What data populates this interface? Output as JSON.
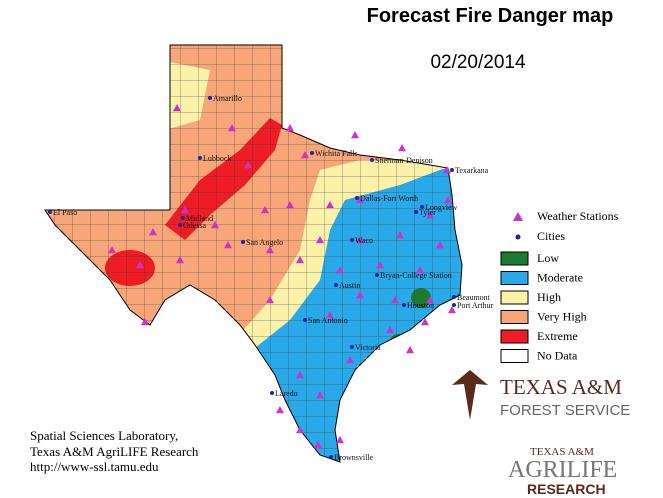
{
  "title": "Forecast Fire Danger map",
  "date": "02/20/2014",
  "legend": {
    "symbols": [
      {
        "label": "Weather Stations",
        "color": "#cc33cc"
      },
      {
        "label": "Cities",
        "color": "#2222aa"
      }
    ],
    "classes": [
      {
        "label": "Low",
        "color": "#1e7a2e"
      },
      {
        "label": "Moderate",
        "color": "#2aa9e8"
      },
      {
        "label": "High",
        "color": "#fbf1a9"
      },
      {
        "label": "Very High",
        "color": "#f7a67a"
      },
      {
        "label": "Extreme",
        "color": "#ee1c24"
      },
      {
        "label": "No Data",
        "color": "#ffffff"
      }
    ]
  },
  "cities": [
    "Amarillo",
    "Lubbock",
    "Wichita Falls",
    "Sherman-Denison",
    "Texarkana",
    "Dallas-Fort Worth",
    "Tyler",
    "Longview",
    "El Paso",
    "Midland",
    "Odessa",
    "San Angelo",
    "Waco",
    "Austin",
    "Bryan-College Station",
    "Beaumont",
    "Port Arthur",
    "Houston",
    "San Antonio",
    "Victoria",
    "Laredo",
    "Brownsville"
  ],
  "credits": [
    "Spatial Sciences Laboratory,",
    "Texas A&M AgriLIFE Research",
    "http://www-ssl.tamu.edu"
  ],
  "logos": {
    "forest": [
      "TEXAS A&M",
      "FOREST SERVICE"
    ],
    "agrilife": [
      "TEXAS A&M",
      "AGRILIFE",
      "RESEARCH"
    ]
  }
}
